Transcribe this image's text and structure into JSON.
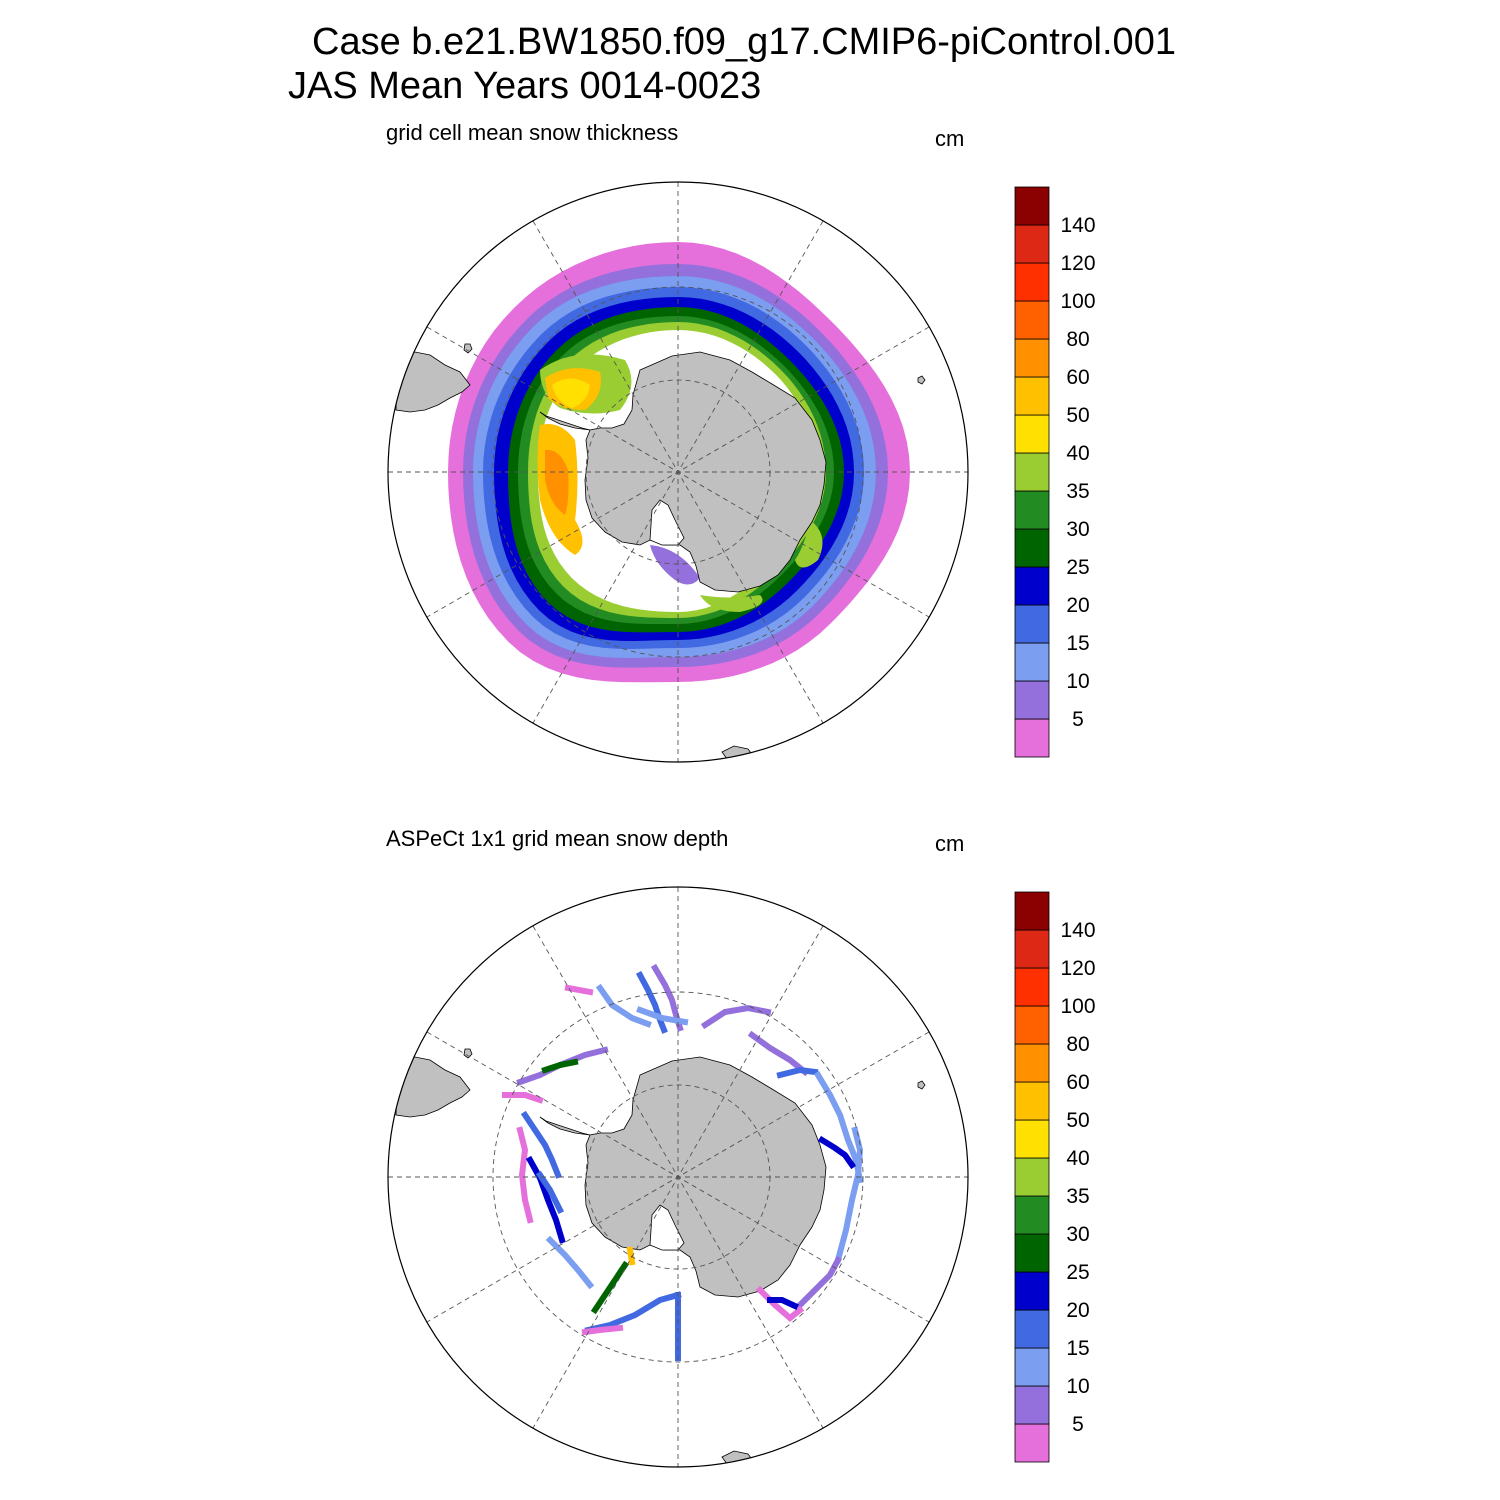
{
  "header": {
    "case_line": "Case b.e21.BW1850.f09_g17.CMIP6-piControl.001",
    "period_line": "JAS Mean   Years 0014-0023"
  },
  "panels": [
    {
      "id": "model",
      "title": "grid cell mean snow thickness",
      "units": "cm",
      "kind": "field"
    },
    {
      "id": "obs",
      "title": "ASPeCt 1x1 grid mean snow depth",
      "units": "cm",
      "kind": "tracks"
    }
  ],
  "colorbar": {
    "levels": [
      "5",
      "10",
      "15",
      "20",
      "25",
      "30",
      "35",
      "40",
      "50",
      "60",
      "80",
      "100",
      "120",
      "140"
    ],
    "colors": [
      "#e56fdb",
      "#9370db",
      "#7b9ef0",
      "#4169e1",
      "#0000cd",
      "#006400",
      "#228b22",
      "#9acd32",
      "#ffe000",
      "#ffc000",
      "#ff9000",
      "#ff6000",
      "#ff3000",
      "#dc2814",
      "#8b0000"
    ]
  },
  "map_colors": {
    "land": "#c0c0c0",
    "ocean": "#ffffff"
  }
}
